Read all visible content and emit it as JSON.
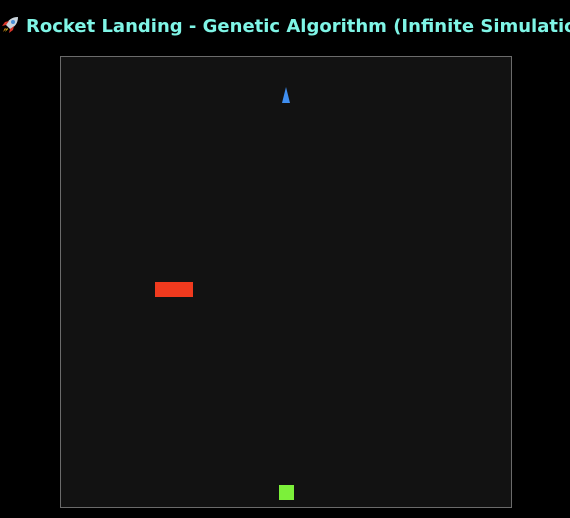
{
  "header": {
    "title": "Rocket Landing - Genetic Algorithm (Infinite Simulation)",
    "icon": "rocket-emoji-icon"
  },
  "colors": {
    "title_text": "#7ff5e6",
    "background": "#000000",
    "canvas_background": "#121212",
    "canvas_border": "#6b6b6b",
    "rocket": "#3f8ef0",
    "obstacle": "#f03a1e",
    "landing_pad": "#7cf03a"
  },
  "simulation": {
    "objects": [
      "rocket",
      "obstacle",
      "landing-pad"
    ]
  }
}
